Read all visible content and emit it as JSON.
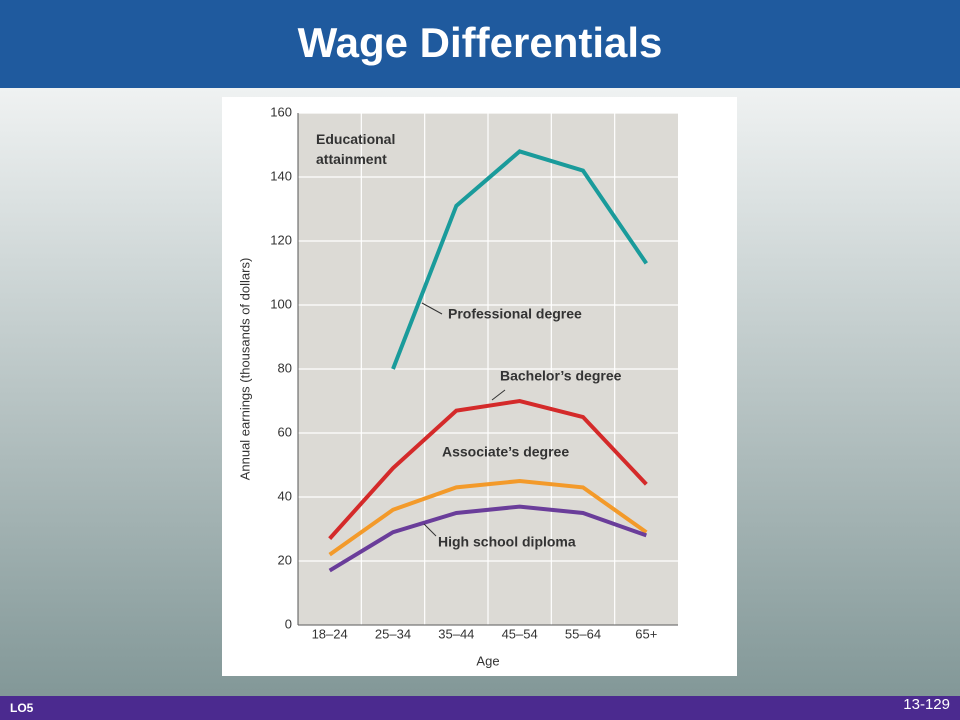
{
  "slide": {
    "title": "Wage Differentials",
    "footer_left": "LO5",
    "page_number": "13-129"
  },
  "chart_data": {
    "type": "line",
    "annotation": "Educational attainment",
    "ylabel": "Annual earnings (thousands of dollars)",
    "xlabel": "Age",
    "categories": [
      "18–24",
      "25–34",
      "35–44",
      "45–54",
      "55–64",
      "65+"
    ],
    "series": [
      {
        "name": "Professional degree",
        "color": "#1a9b9b",
        "values": [
          null,
          80,
          131,
          148,
          142,
          113
        ]
      },
      {
        "name": "Bachelor’s degree",
        "color": "#d42a2a",
        "values": [
          27,
          49,
          67,
          70,
          65,
          44
        ]
      },
      {
        "name": "Associate’s degree",
        "color": "#f39a2a",
        "values": [
          22,
          36,
          43,
          45,
          43,
          29
        ]
      },
      {
        "name": "High school diploma",
        "color": "#6a3d9a",
        "values": [
          17,
          29,
          35,
          37,
          35,
          28
        ]
      }
    ],
    "ylim": [
      0,
      160
    ],
    "yticks": [
      0,
      20,
      40,
      60,
      80,
      100,
      120,
      140,
      160
    ],
    "grid": true
  }
}
